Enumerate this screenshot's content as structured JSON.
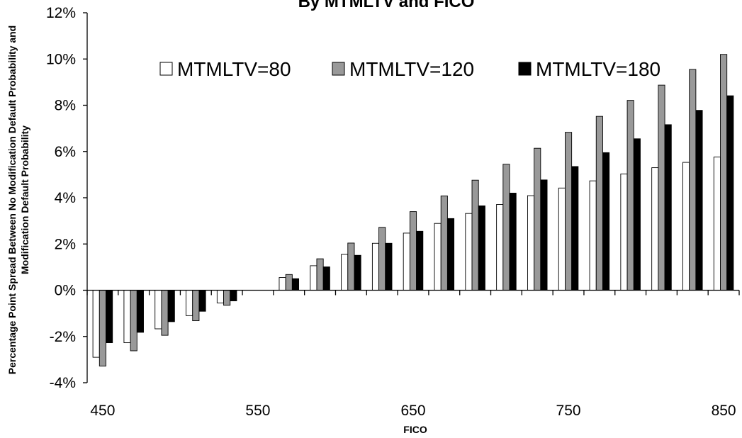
{
  "chart_data": {
    "type": "bar",
    "title": "By MTMLTV and FICO",
    "xlabel": "FICO",
    "ylabel_line1": "Percentage Point Spread Between No Modification Default Probability and",
    "ylabel_line2": "Modification Default Probability",
    "ylim": [
      -0.04,
      0.12
    ],
    "yticks": [
      "-4%",
      "-2%",
      "0%",
      "2%",
      "4%",
      "6%",
      "8%",
      "10%",
      "12%"
    ],
    "ytick_values": [
      -0.04,
      -0.02,
      0,
      0.02,
      0.04,
      0.06,
      0.08,
      0.1,
      0.12
    ],
    "xtick_labels": [
      "450",
      "550",
      "650",
      "750",
      "850"
    ],
    "categories": [
      450,
      470,
      490,
      510,
      530,
      550,
      570,
      590,
      610,
      630,
      650,
      670,
      690,
      710,
      730,
      750,
      770,
      790,
      810,
      830,
      850
    ],
    "legend_position": "top",
    "grid": false,
    "series": [
      {
        "name": "MTMLTV=80",
        "color": "#ffffff",
        "values": [
          -0.029,
          -0.0227,
          -0.0167,
          -0.011,
          -0.0055,
          null,
          0.0055,
          0.0106,
          0.0155,
          0.0203,
          0.0247,
          0.0289,
          0.0332,
          0.0371,
          0.0409,
          0.0442,
          0.0473,
          0.0503,
          0.053,
          0.0553,
          0.0576
        ]
      },
      {
        "name": "MTMLTV=120",
        "color": "#999999",
        "values": [
          -0.0328,
          -0.0262,
          -0.0195,
          -0.0132,
          -0.0065,
          null,
          0.0068,
          0.0136,
          0.0204,
          0.0272,
          0.034,
          0.0408,
          0.0476,
          0.0545,
          0.0614,
          0.0683,
          0.0752,
          0.0821,
          0.0887,
          0.0955,
          0.102
        ]
      },
      {
        "name": "MTMLTV=180",
        "color": "#000000",
        "values": [
          -0.0227,
          -0.0182,
          -0.0136,
          -0.0091,
          -0.0046,
          null,
          0.005,
          0.0101,
          0.0151,
          0.0203,
          0.0255,
          0.031,
          0.0365,
          0.042,
          0.0477,
          0.0535,
          0.0595,
          0.0655,
          0.0716,
          0.0778,
          0.0841
        ]
      }
    ]
  }
}
